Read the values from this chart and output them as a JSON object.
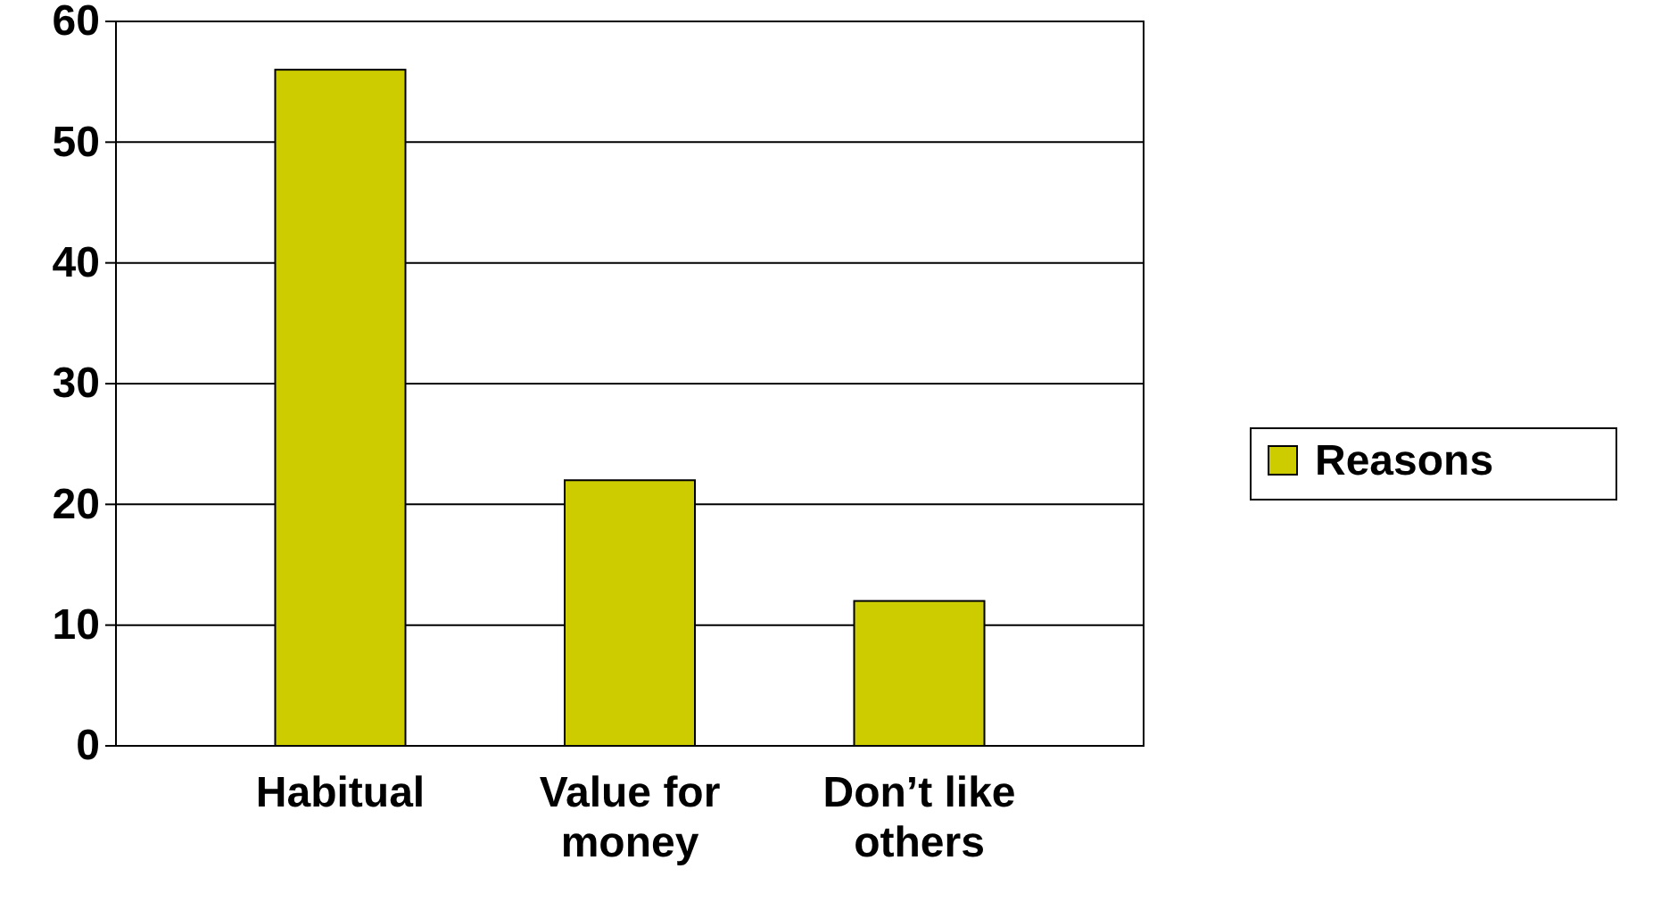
{
  "chart_data": {
    "type": "bar",
    "categories": [
      "Habitual",
      "Value for money",
      "Don’t like others"
    ],
    "series": [
      {
        "name": "Reasons",
        "color": "#cccc00",
        "values": [
          56,
          22,
          12
        ]
      }
    ],
    "ylim": [
      0,
      60
    ],
    "yticks": [
      0,
      10,
      20,
      30,
      40,
      50,
      60
    ],
    "grid": "y",
    "legend": "right"
  }
}
